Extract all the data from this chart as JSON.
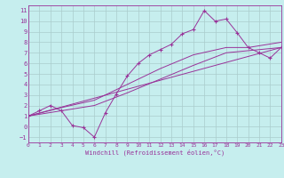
{
  "xlabel": "Windchill (Refroidissement éolien,°C)",
  "xlim": [
    0,
    23
  ],
  "ylim": [
    -1.5,
    11.5
  ],
  "xticks": [
    0,
    1,
    2,
    3,
    4,
    5,
    6,
    7,
    8,
    9,
    10,
    11,
    12,
    13,
    14,
    15,
    16,
    17,
    18,
    19,
    20,
    21,
    22,
    23
  ],
  "yticks": [
    -1,
    0,
    1,
    2,
    3,
    4,
    5,
    6,
    7,
    8,
    9,
    10,
    11
  ],
  "bg_color": "#c6eeee",
  "line_color": "#993399",
  "grid_color": "#aacccc",
  "line1_x": [
    0,
    1,
    2,
    3,
    4,
    5,
    6,
    7,
    8,
    9,
    10,
    11,
    12,
    13,
    14,
    15,
    16,
    17,
    18,
    19,
    20,
    21,
    22,
    23
  ],
  "line1_y": [
    1,
    1.5,
    2.0,
    1.5,
    0.1,
    -0.1,
    -1.0,
    1.3,
    3.1,
    4.8,
    6.0,
    6.8,
    7.3,
    7.8,
    8.8,
    9.2,
    11.0,
    10.0,
    10.2,
    8.9,
    7.5,
    7.0,
    6.5,
    7.5
  ],
  "line2_x": [
    0,
    23
  ],
  "line2_y": [
    1.0,
    7.5
  ],
  "line3_x": [
    0,
    3,
    6,
    9,
    12,
    15,
    18,
    20,
    23
  ],
  "line3_y": [
    1.0,
    1.5,
    2.0,
    3.2,
    4.5,
    5.8,
    7.0,
    7.2,
    7.5
  ],
  "line4_x": [
    0,
    3,
    6,
    9,
    12,
    15,
    18,
    20,
    23
  ],
  "line4_y": [
    1.0,
    1.8,
    2.5,
    4.0,
    5.5,
    6.8,
    7.5,
    7.5,
    8.0
  ]
}
